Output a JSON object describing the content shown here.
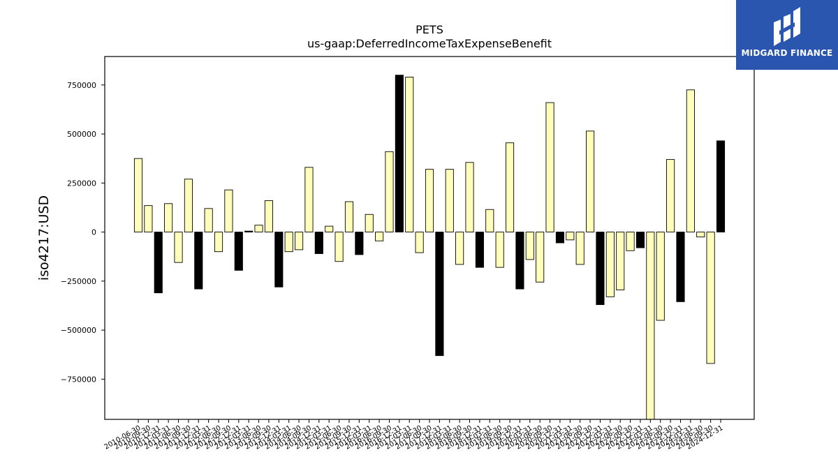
{
  "logo": {
    "text": "MIDGARD FINANCE",
    "background": "#2b56b0"
  },
  "chart_data": {
    "type": "bar",
    "title": "PETS",
    "subtitle": "us-gaap:DeferredIncomeTaxExpenseBenefit",
    "xlabel": "",
    "ylabel": "iso4217:USD",
    "ylim": [
      -955000,
      895000
    ],
    "yticks": [
      -750000,
      -500000,
      -250000,
      0,
      250000,
      500000,
      750000
    ],
    "grid": false,
    "colors": {
      "light": "#ffffbb",
      "dark": "#000000",
      "edge": "#000000"
    },
    "categories": [
      "2010-06-30",
      "2010-09-30",
      "2010-12-31",
      "2011-03-31",
      "2011-06-30",
      "2011-09-30",
      "2011-12-31",
      "2012-03-31",
      "2012-06-30",
      "2012-09-30",
      "2012-12-31",
      "2013-03-31",
      "2013-06-30",
      "2013-09-30",
      "2013-12-31",
      "2014-03-31",
      "2014-06-30",
      "2014-09-30",
      "2014-12-31",
      "2015-03-31",
      "2015-06-30",
      "2015-09-30",
      "2015-12-31",
      "2016-03-31",
      "2016-06-30",
      "2016-09-30",
      "2016-12-31",
      "2017-03-31",
      "2017-06-30",
      "2017-09-30",
      "2017-12-31",
      "2018-03-31",
      "2018-06-30",
      "2018-09-30",
      "2018-12-31",
      "2019-03-31",
      "2019-06-30",
      "2019-09-30",
      "2019-12-31",
      "2020-03-31",
      "2020-06-30",
      "2020-09-30",
      "2020-12-31",
      "2021-03-31",
      "2021-06-30",
      "2021-09-30",
      "2021-12-31",
      "2022-03-31",
      "2022-06-30",
      "2022-09-30",
      "2022-12-31",
      "2023-03-31",
      "2023-06-30",
      "2023-09-30",
      "2023-12-31",
      "2024-03-31",
      "2024-06-30",
      "2024-09-30",
      "2024-12-31"
    ],
    "values": [
      375000,
      135000,
      -310000,
      145000,
      -155000,
      270000,
      -290000,
      120000,
      -100000,
      215000,
      -195000,
      5000,
      35000,
      160000,
      -280000,
      -100000,
      -90000,
      330000,
      -110000,
      30000,
      -150000,
      155000,
      -115000,
      90000,
      -45000,
      410000,
      800000,
      790000,
      -105000,
      320000,
      -630000,
      320000,
      -165000,
      355000,
      -180000,
      115000,
      -180000,
      455000,
      -290000,
      -140000,
      -255000,
      660000,
      -55000,
      -40000,
      -165000,
      515000,
      -370000,
      -330000,
      -295000,
      -95000,
      -80000,
      -955000,
      -450000,
      370000,
      -355000,
      725000,
      -25000,
      -670000,
      465000
    ],
    "bar_tone": [
      "light",
      "light",
      "dark",
      "light",
      "light",
      "light",
      "dark",
      "light",
      "light",
      "light",
      "dark",
      "dark",
      "light",
      "light",
      "dark",
      "light",
      "light",
      "light",
      "dark",
      "light",
      "light",
      "light",
      "dark",
      "light",
      "light",
      "light",
      "dark",
      "light",
      "light",
      "light",
      "dark",
      "light",
      "light",
      "light",
      "dark",
      "light",
      "light",
      "light",
      "dark",
      "light",
      "light",
      "light",
      "dark",
      "light",
      "light",
      "light",
      "dark",
      "light",
      "light",
      "light",
      "dark",
      "light",
      "light",
      "light",
      "dark",
      "light",
      "light",
      "light",
      "dark"
    ]
  }
}
